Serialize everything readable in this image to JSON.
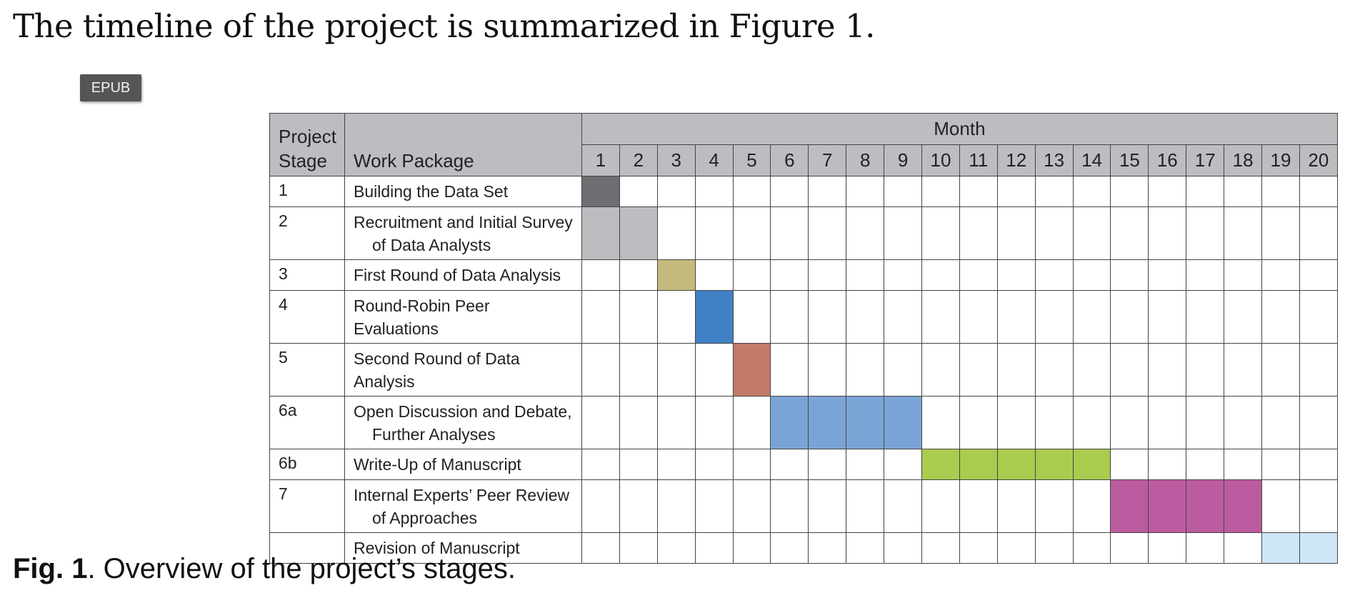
{
  "intro_text": "The timeline of the project is summarized in Figure 1.",
  "epub_button_label": "EPUB",
  "table": {
    "header": {
      "stage_line1": "Project",
      "stage_line2": "Stage",
      "work_package": "Work Package",
      "month": "Month"
    },
    "months": [
      "1",
      "2",
      "3",
      "4",
      "5",
      "6",
      "7",
      "8",
      "9",
      "10",
      "11",
      "12",
      "13",
      "14",
      "15",
      "16",
      "17",
      "18",
      "19",
      "20"
    ],
    "rows": [
      {
        "stage": "1",
        "wp_line1": "Building the Data Set",
        "wp_line2": "",
        "start_month": 1,
        "end_month": 1,
        "color": "#6d6e71"
      },
      {
        "stage": "2",
        "wp_line1": "Recruitment and Initial Survey",
        "wp_line2": "of Data Analysts",
        "start_month": 1,
        "end_month": 2,
        "color": "#bcbdc1"
      },
      {
        "stage": "3",
        "wp_line1": "First Round of Data Analysis",
        "wp_line2": "",
        "start_month": 3,
        "end_month": 3,
        "color": "#c4bb7c"
      },
      {
        "stage": "4",
        "wp_line1": "Round-Robin Peer Evaluations",
        "wp_line2": "",
        "start_month": 4,
        "end_month": 4,
        "color": "#3f80c4"
      },
      {
        "stage": "5",
        "wp_line1": "Second Round of Data Analysis",
        "wp_line2": "",
        "start_month": 5,
        "end_month": 5,
        "color": "#c27b68"
      },
      {
        "stage": "6a",
        "wp_line1": "Open Discussion and Debate,",
        "wp_line2": "Further Analyses",
        "start_month": 6,
        "end_month": 9,
        "color": "#7ba4d6"
      },
      {
        "stage": "6b",
        "wp_line1": "Write-Up of Manuscript",
        "wp_line2": "",
        "start_month": 10,
        "end_month": 14,
        "color": "#a9cc4f"
      },
      {
        "stage": "7",
        "wp_line1": "Internal Experts’ Peer Review",
        "wp_line2": "of Approaches",
        "start_month": 15,
        "end_month": 18,
        "color": "#bc5b9f"
      },
      {
        "stage": "",
        "wp_line1": "Revision of Manuscript",
        "wp_line2": "",
        "start_month": 19,
        "end_month": 20,
        "color": "#cde6f8"
      }
    ]
  },
  "caption": {
    "label": "Fig. 1",
    "text": ". Overview of the project’s stages."
  }
}
